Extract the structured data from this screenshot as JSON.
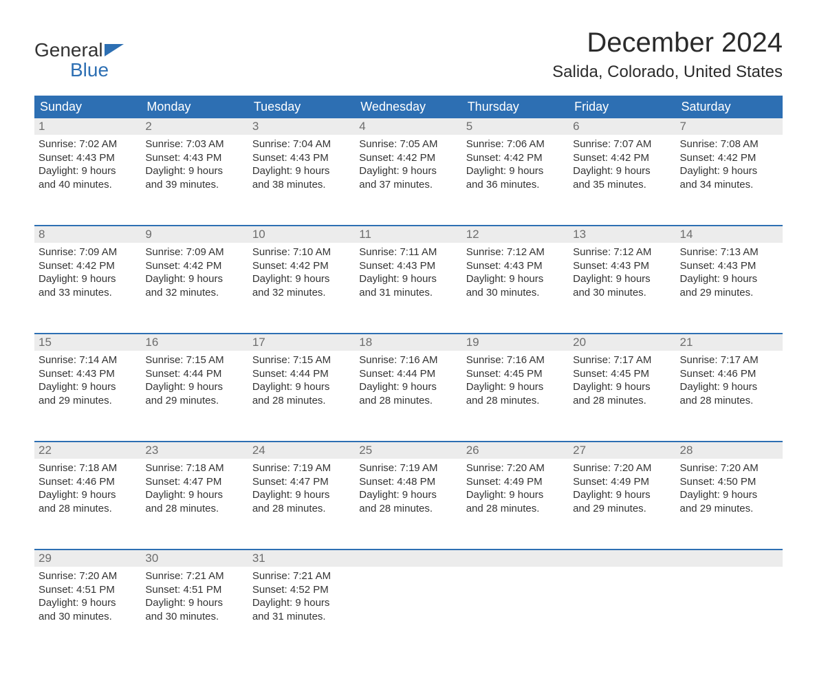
{
  "logo": {
    "line1": "General",
    "line2": "Blue"
  },
  "title": "December 2024",
  "location": "Salida, Colorado, United States",
  "colors": {
    "header_bg": "#2d6fb3",
    "header_fg": "#ffffff",
    "daynum_bg": "#ececec",
    "daynum_fg": "#6d6d6d",
    "rule": "#2d6fb3",
    "body_bg": "#ffffff",
    "text": "#333333",
    "logo_blue": "#2d6fb3"
  },
  "typography": {
    "title_fontsize": 40,
    "location_fontsize": 24,
    "header_fontsize": 18,
    "daynum_fontsize": 17,
    "cell_fontsize": 15,
    "logo_fontsize": 28
  },
  "day_headers": [
    "Sunday",
    "Monday",
    "Tuesday",
    "Wednesday",
    "Thursday",
    "Friday",
    "Saturday"
  ],
  "weeks": [
    [
      {
        "n": "1",
        "sr": "Sunrise: 7:02 AM",
        "ss": "Sunset: 4:43 PM",
        "d1": "Daylight: 9 hours",
        "d2": "and 40 minutes."
      },
      {
        "n": "2",
        "sr": "Sunrise: 7:03 AM",
        "ss": "Sunset: 4:43 PM",
        "d1": "Daylight: 9 hours",
        "d2": "and 39 minutes."
      },
      {
        "n": "3",
        "sr": "Sunrise: 7:04 AM",
        "ss": "Sunset: 4:43 PM",
        "d1": "Daylight: 9 hours",
        "d2": "and 38 minutes."
      },
      {
        "n": "4",
        "sr": "Sunrise: 7:05 AM",
        "ss": "Sunset: 4:42 PM",
        "d1": "Daylight: 9 hours",
        "d2": "and 37 minutes."
      },
      {
        "n": "5",
        "sr": "Sunrise: 7:06 AM",
        "ss": "Sunset: 4:42 PM",
        "d1": "Daylight: 9 hours",
        "d2": "and 36 minutes."
      },
      {
        "n": "6",
        "sr": "Sunrise: 7:07 AM",
        "ss": "Sunset: 4:42 PM",
        "d1": "Daylight: 9 hours",
        "d2": "and 35 minutes."
      },
      {
        "n": "7",
        "sr": "Sunrise: 7:08 AM",
        "ss": "Sunset: 4:42 PM",
        "d1": "Daylight: 9 hours",
        "d2": "and 34 minutes."
      }
    ],
    [
      {
        "n": "8",
        "sr": "Sunrise: 7:09 AM",
        "ss": "Sunset: 4:42 PM",
        "d1": "Daylight: 9 hours",
        "d2": "and 33 minutes."
      },
      {
        "n": "9",
        "sr": "Sunrise: 7:09 AM",
        "ss": "Sunset: 4:42 PM",
        "d1": "Daylight: 9 hours",
        "d2": "and 32 minutes."
      },
      {
        "n": "10",
        "sr": "Sunrise: 7:10 AM",
        "ss": "Sunset: 4:42 PM",
        "d1": "Daylight: 9 hours",
        "d2": "and 32 minutes."
      },
      {
        "n": "11",
        "sr": "Sunrise: 7:11 AM",
        "ss": "Sunset: 4:43 PM",
        "d1": "Daylight: 9 hours",
        "d2": "and 31 minutes."
      },
      {
        "n": "12",
        "sr": "Sunrise: 7:12 AM",
        "ss": "Sunset: 4:43 PM",
        "d1": "Daylight: 9 hours",
        "d2": "and 30 minutes."
      },
      {
        "n": "13",
        "sr": "Sunrise: 7:12 AM",
        "ss": "Sunset: 4:43 PM",
        "d1": "Daylight: 9 hours",
        "d2": "and 30 minutes."
      },
      {
        "n": "14",
        "sr": "Sunrise: 7:13 AM",
        "ss": "Sunset: 4:43 PM",
        "d1": "Daylight: 9 hours",
        "d2": "and 29 minutes."
      }
    ],
    [
      {
        "n": "15",
        "sr": "Sunrise: 7:14 AM",
        "ss": "Sunset: 4:43 PM",
        "d1": "Daylight: 9 hours",
        "d2": "and 29 minutes."
      },
      {
        "n": "16",
        "sr": "Sunrise: 7:15 AM",
        "ss": "Sunset: 4:44 PM",
        "d1": "Daylight: 9 hours",
        "d2": "and 29 minutes."
      },
      {
        "n": "17",
        "sr": "Sunrise: 7:15 AM",
        "ss": "Sunset: 4:44 PM",
        "d1": "Daylight: 9 hours",
        "d2": "and 28 minutes."
      },
      {
        "n": "18",
        "sr": "Sunrise: 7:16 AM",
        "ss": "Sunset: 4:44 PM",
        "d1": "Daylight: 9 hours",
        "d2": "and 28 minutes."
      },
      {
        "n": "19",
        "sr": "Sunrise: 7:16 AM",
        "ss": "Sunset: 4:45 PM",
        "d1": "Daylight: 9 hours",
        "d2": "and 28 minutes."
      },
      {
        "n": "20",
        "sr": "Sunrise: 7:17 AM",
        "ss": "Sunset: 4:45 PM",
        "d1": "Daylight: 9 hours",
        "d2": "and 28 minutes."
      },
      {
        "n": "21",
        "sr": "Sunrise: 7:17 AM",
        "ss": "Sunset: 4:46 PM",
        "d1": "Daylight: 9 hours",
        "d2": "and 28 minutes."
      }
    ],
    [
      {
        "n": "22",
        "sr": "Sunrise: 7:18 AM",
        "ss": "Sunset: 4:46 PM",
        "d1": "Daylight: 9 hours",
        "d2": "and 28 minutes."
      },
      {
        "n": "23",
        "sr": "Sunrise: 7:18 AM",
        "ss": "Sunset: 4:47 PM",
        "d1": "Daylight: 9 hours",
        "d2": "and 28 minutes."
      },
      {
        "n": "24",
        "sr": "Sunrise: 7:19 AM",
        "ss": "Sunset: 4:47 PM",
        "d1": "Daylight: 9 hours",
        "d2": "and 28 minutes."
      },
      {
        "n": "25",
        "sr": "Sunrise: 7:19 AM",
        "ss": "Sunset: 4:48 PM",
        "d1": "Daylight: 9 hours",
        "d2": "and 28 minutes."
      },
      {
        "n": "26",
        "sr": "Sunrise: 7:20 AM",
        "ss": "Sunset: 4:49 PM",
        "d1": "Daylight: 9 hours",
        "d2": "and 28 minutes."
      },
      {
        "n": "27",
        "sr": "Sunrise: 7:20 AM",
        "ss": "Sunset: 4:49 PM",
        "d1": "Daylight: 9 hours",
        "d2": "and 29 minutes."
      },
      {
        "n": "28",
        "sr": "Sunrise: 7:20 AM",
        "ss": "Sunset: 4:50 PM",
        "d1": "Daylight: 9 hours",
        "d2": "and 29 minutes."
      }
    ],
    [
      {
        "n": "29",
        "sr": "Sunrise: 7:20 AM",
        "ss": "Sunset: 4:51 PM",
        "d1": "Daylight: 9 hours",
        "d2": "and 30 minutes."
      },
      {
        "n": "30",
        "sr": "Sunrise: 7:21 AM",
        "ss": "Sunset: 4:51 PM",
        "d1": "Daylight: 9 hours",
        "d2": "and 30 minutes."
      },
      {
        "n": "31",
        "sr": "Sunrise: 7:21 AM",
        "ss": "Sunset: 4:52 PM",
        "d1": "Daylight: 9 hours",
        "d2": "and 31 minutes."
      },
      null,
      null,
      null,
      null
    ]
  ]
}
